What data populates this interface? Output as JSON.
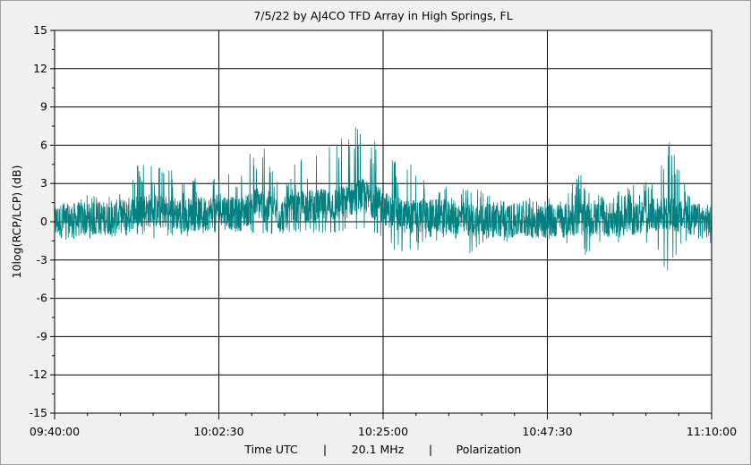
{
  "chart_data": {
    "type": "line",
    "title": "7/5/22  by  AJ4CO TFD Array  in  High Springs, FL",
    "ylabel": "10log(RCP/LCP)  (dB)",
    "xlabel_parts": [
      "Time UTC",
      "|",
      "20.1 MHz",
      "|",
      "Polarization"
    ],
    "ylim": [
      -15,
      15
    ],
    "y_ticks": [
      15,
      12,
      9,
      6,
      3,
      0,
      -3,
      -6,
      -9,
      -12,
      -15
    ],
    "y_tick_labels": [
      "15",
      "12",
      "9",
      "6",
      "3",
      "0",
      "-3",
      "-6",
      "-9",
      "-12",
      "-15"
    ],
    "x_range_seconds": [
      0,
      5400
    ],
    "x_ticks_seconds": [
      0,
      1350,
      2700,
      4050,
      5400
    ],
    "x_tick_labels": [
      "09:40:00",
      "10:02:30",
      "10:25:00",
      "10:47:30",
      "11:10:00"
    ],
    "grid": true,
    "series_color": "#008080",
    "series": [
      {
        "x_unit": "time UTC (major ticks at the labels above)",
        "envelope_points": [
          {
            "t": "09:40:00",
            "low": -1.5,
            "high": 1.5
          },
          {
            "t": "09:43:00",
            "low": -1.4,
            "high": 2.0
          },
          {
            "t": "09:46:00",
            "low": -1.3,
            "high": 2.2
          },
          {
            "t": "09:49:00",
            "low": -1.3,
            "high": 3.0
          },
          {
            "t": "09:52:00",
            "low": -1.2,
            "high": 5.0
          },
          {
            "t": "09:55:00",
            "low": -1.5,
            "high": 4.5
          },
          {
            "t": "09:58:00",
            "low": -1.2,
            "high": 3.5
          },
          {
            "t": "10:01:00",
            "low": -1.0,
            "high": 3.5
          },
          {
            "t": "10:02:30",
            "low": -1.0,
            "high": 5.5
          },
          {
            "t": "10:05:00",
            "low": -1.2,
            "high": 3.0
          },
          {
            "t": "10:08:00",
            "low": -1.0,
            "high": 7.0
          },
          {
            "t": "10:11:00",
            "low": -1.0,
            "high": 3.0
          },
          {
            "t": "10:14:00",
            "low": -0.8,
            "high": 5.5
          },
          {
            "t": "10:17:00",
            "low": -1.0,
            "high": 6.0
          },
          {
            "t": "10:20:00",
            "low": -0.8,
            "high": 7.0
          },
          {
            "t": "10:22:00",
            "low": -0.5,
            "high": 9.0
          },
          {
            "t": "10:24:00",
            "low": -1.0,
            "high": 7.0
          },
          {
            "t": "10:26:00",
            "low": -1.8,
            "high": 5.0
          },
          {
            "t": "10:28:00",
            "low": -3.5,
            "high": 5.0
          },
          {
            "t": "10:31:00",
            "low": -1.5,
            "high": 3.5
          },
          {
            "t": "10:34:00",
            "low": -1.5,
            "high": 3.0
          },
          {
            "t": "10:37:00",
            "low": -2.5,
            "high": 3.0
          },
          {
            "t": "10:40:00",
            "low": -1.8,
            "high": 2.0
          },
          {
            "t": "10:43:00",
            "low": -1.5,
            "high": 1.8
          },
          {
            "t": "10:46:00",
            "low": -1.5,
            "high": 2.0
          },
          {
            "t": "10:49:00",
            "low": -1.5,
            "high": 1.8
          },
          {
            "t": "10:52:00",
            "low": -3.0,
            "high": 4.0
          },
          {
            "t": "10:55:00",
            "low": -1.5,
            "high": 2.0
          },
          {
            "t": "10:58:00",
            "low": -2.0,
            "high": 2.5
          },
          {
            "t": "11:01:00",
            "low": -1.8,
            "high": 3.5
          },
          {
            "t": "11:04:00",
            "low": -4.0,
            "high": 6.5
          },
          {
            "t": "11:07:00",
            "low": -1.8,
            "high": 2.5
          },
          {
            "t": "11:10:00",
            "low": -2.5,
            "high": 2.5
          }
        ]
      }
    ]
  }
}
